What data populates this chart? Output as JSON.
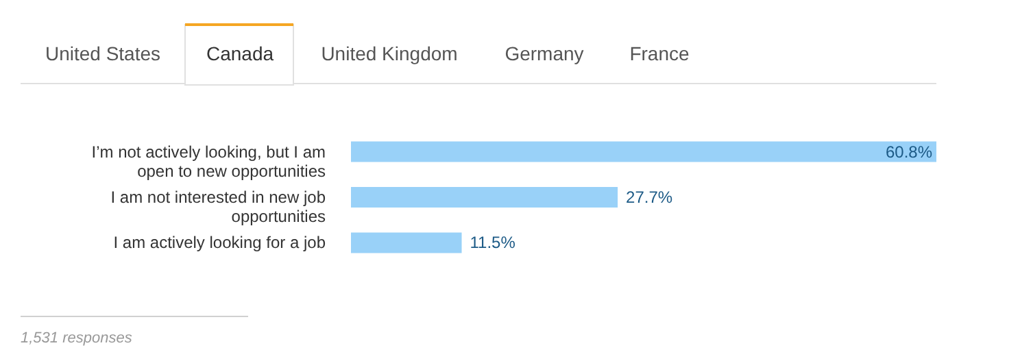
{
  "chart_data": {
    "type": "bar",
    "orientation": "horizontal",
    "categories": [
      "I’m not actively looking, but I am open to new opportunities",
      "I am not interested in new job opportunities",
      "I am actively looking for a job"
    ],
    "values": [
      60.8,
      27.7,
      11.5
    ],
    "value_labels": [
      "60.8%",
      "27.7%",
      "11.5%"
    ],
    "color": "#99d1f8",
    "annotations": [
      "United States",
      "Canada",
      "United Kingdom",
      "Germany",
      "France",
      "1,531 responses"
    ]
  }
}
